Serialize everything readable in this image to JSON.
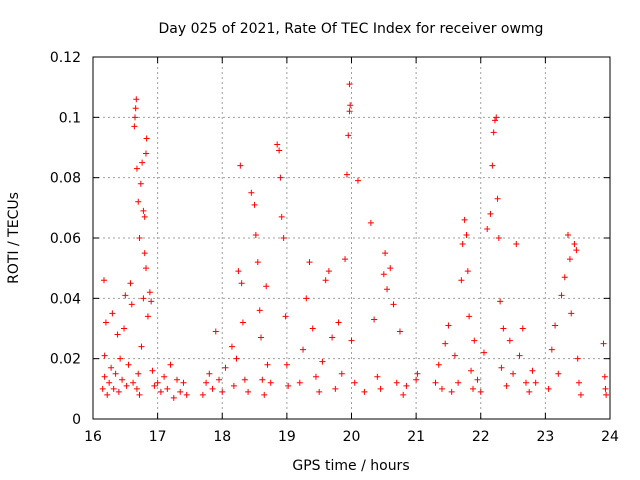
{
  "chart_data": {
    "type": "scatter",
    "title": "Day 025 of 2021, Rate Of TEC Index for receiver owmg",
    "xlabel": "GPS time / hours",
    "ylabel": "ROTI / TECUs",
    "xlim": [
      16,
      24
    ],
    "ylim": [
      0,
      0.12
    ],
    "x_ticks": [
      16,
      17,
      18,
      19,
      20,
      21,
      22,
      23,
      24
    ],
    "x_tick_labels": [
      "16",
      "17",
      "18",
      "19",
      "20",
      "21",
      "22",
      "23",
      "24"
    ],
    "y_ticks": [
      0,
      0.02,
      0.04,
      0.06,
      0.08,
      0.1,
      0.12
    ],
    "y_tick_labels": [
      "0",
      "0.02",
      "0.04",
      "0.06",
      "0.08",
      "0.1",
      "0.12"
    ],
    "grid": true,
    "marker": "plus",
    "series": [
      {
        "name": "ROTI",
        "color": "#ff0000",
        "points": [
          [
            16.15,
            0.01
          ],
          [
            16.18,
            0.014
          ],
          [
            16.18,
            0.021
          ],
          [
            16.17,
            0.046
          ],
          [
            16.2,
            0.032
          ],
          [
            16.22,
            0.008
          ],
          [
            16.25,
            0.012
          ],
          [
            16.28,
            0.017
          ],
          [
            16.3,
            0.035
          ],
          [
            16.32,
            0.01
          ],
          [
            16.35,
            0.015
          ],
          [
            16.38,
            0.028
          ],
          [
            16.4,
            0.009
          ],
          [
            16.42,
            0.02
          ],
          [
            16.45,
            0.013
          ],
          [
            16.48,
            0.03
          ],
          [
            16.5,
            0.041
          ],
          [
            16.52,
            0.011
          ],
          [
            16.55,
            0.018
          ],
          [
            16.58,
            0.045
          ],
          [
            16.6,
            0.038
          ],
          [
            16.62,
            0.012
          ],
          [
            16.64,
            0.097
          ],
          [
            16.65,
            0.1
          ],
          [
            16.66,
            0.103
          ],
          [
            16.67,
            0.106
          ],
          [
            16.68,
            0.083
          ],
          [
            16.7,
            0.072
          ],
          [
            16.72,
            0.06
          ],
          [
            16.74,
            0.078
          ],
          [
            16.76,
            0.085
          ],
          [
            16.78,
            0.069
          ],
          [
            16.8,
            0.067
          ],
          [
            16.82,
            0.088
          ],
          [
            16.83,
            0.093
          ],
          [
            16.8,
            0.055
          ],
          [
            16.82,
            0.05
          ],
          [
            16.78,
            0.04
          ],
          [
            16.75,
            0.024
          ],
          [
            16.7,
            0.015
          ],
          [
            16.68,
            0.01
          ],
          [
            16.72,
            0.008
          ],
          [
            16.85,
            0.034
          ],
          [
            16.88,
            0.042
          ],
          [
            16.9,
            0.039
          ],
          [
            16.92,
            0.016
          ],
          [
            16.95,
            0.011
          ],
          [
            17.0,
            0.012
          ],
          [
            17.05,
            0.009
          ],
          [
            17.1,
            0.014
          ],
          [
            17.15,
            0.01
          ],
          [
            17.2,
            0.018
          ],
          [
            17.25,
            0.007
          ],
          [
            17.3,
            0.013
          ],
          [
            17.35,
            0.009
          ],
          [
            17.4,
            0.012
          ],
          [
            17.45,
            0.008
          ],
          [
            17.7,
            0.008
          ],
          [
            17.75,
            0.012
          ],
          [
            17.8,
            0.015
          ],
          [
            17.85,
            0.01
          ],
          [
            17.9,
            0.029
          ],
          [
            17.95,
            0.013
          ],
          [
            18.0,
            0.009
          ],
          [
            18.05,
            0.017
          ],
          [
            18.15,
            0.024
          ],
          [
            18.18,
            0.011
          ],
          [
            18.22,
            0.02
          ],
          [
            18.25,
            0.049
          ],
          [
            18.28,
            0.084
          ],
          [
            18.3,
            0.045
          ],
          [
            18.32,
            0.032
          ],
          [
            18.35,
            0.013
          ],
          [
            18.4,
            0.009
          ],
          [
            18.45,
            0.075
          ],
          [
            18.5,
            0.071
          ],
          [
            18.52,
            0.061
          ],
          [
            18.55,
            0.052
          ],
          [
            18.58,
            0.036
          ],
          [
            18.6,
            0.027
          ],
          [
            18.62,
            0.013
          ],
          [
            18.65,
            0.008
          ],
          [
            18.68,
            0.044
          ],
          [
            18.7,
            0.018
          ],
          [
            18.75,
            0.012
          ],
          [
            18.85,
            0.091
          ],
          [
            18.88,
            0.089
          ],
          [
            18.9,
            0.08
          ],
          [
            18.92,
            0.067
          ],
          [
            18.95,
            0.06
          ],
          [
            18.98,
            0.034
          ],
          [
            19.0,
            0.018
          ],
          [
            19.02,
            0.011
          ],
          [
            19.2,
            0.012
          ],
          [
            19.25,
            0.023
          ],
          [
            19.3,
            0.04
          ],
          [
            19.35,
            0.052
          ],
          [
            19.4,
            0.03
          ],
          [
            19.45,
            0.014
          ],
          [
            19.5,
            0.009
          ],
          [
            19.55,
            0.019
          ],
          [
            19.6,
            0.046
          ],
          [
            19.65,
            0.049
          ],
          [
            19.7,
            0.027
          ],
          [
            19.75,
            0.01
          ],
          [
            19.8,
            0.032
          ],
          [
            19.85,
            0.015
          ],
          [
            19.9,
            0.053
          ],
          [
            19.93,
            0.081
          ],
          [
            19.95,
            0.094
          ],
          [
            19.97,
            0.102
          ],
          [
            19.98,
            0.104
          ],
          [
            19.97,
            0.111
          ],
          [
            20.0,
            0.026
          ],
          [
            20.05,
            0.012
          ],
          [
            20.1,
            0.079
          ],
          [
            20.2,
            0.009
          ],
          [
            20.3,
            0.065
          ],
          [
            20.35,
            0.033
          ],
          [
            20.4,
            0.014
          ],
          [
            20.45,
            0.01
          ],
          [
            20.5,
            0.048
          ],
          [
            20.52,
            0.055
          ],
          [
            20.55,
            0.043
          ],
          [
            20.6,
            0.05
          ],
          [
            20.65,
            0.038
          ],
          [
            20.7,
            0.012
          ],
          [
            20.75,
            0.029
          ],
          [
            20.8,
            0.008
          ],
          [
            20.85,
            0.011
          ],
          [
            21.0,
            0.013
          ],
          [
            21.02,
            0.015
          ],
          [
            21.3,
            0.012
          ],
          [
            21.35,
            0.018
          ],
          [
            21.4,
            0.01
          ],
          [
            21.45,
            0.025
          ],
          [
            21.5,
            0.031
          ],
          [
            21.55,
            0.009
          ],
          [
            21.6,
            0.021
          ],
          [
            21.65,
            0.012
          ],
          [
            21.7,
            0.046
          ],
          [
            21.72,
            0.058
          ],
          [
            21.75,
            0.066
          ],
          [
            21.78,
            0.061
          ],
          [
            21.8,
            0.049
          ],
          [
            21.82,
            0.034
          ],
          [
            21.85,
            0.016
          ],
          [
            21.88,
            0.01
          ],
          [
            21.9,
            0.026
          ],
          [
            21.95,
            0.013
          ],
          [
            22.0,
            0.009
          ],
          [
            22.05,
            0.022
          ],
          [
            22.1,
            0.063
          ],
          [
            22.15,
            0.068
          ],
          [
            22.18,
            0.084
          ],
          [
            22.2,
            0.095
          ],
          [
            22.22,
            0.099
          ],
          [
            22.24,
            0.1
          ],
          [
            22.26,
            0.073
          ],
          [
            22.28,
            0.06
          ],
          [
            22.3,
            0.039
          ],
          [
            22.32,
            0.017
          ],
          [
            22.35,
            0.03
          ],
          [
            22.4,
            0.011
          ],
          [
            22.45,
            0.026
          ],
          [
            22.5,
            0.015
          ],
          [
            22.55,
            0.058
          ],
          [
            22.6,
            0.021
          ],
          [
            22.65,
            0.03
          ],
          [
            22.7,
            0.012
          ],
          [
            22.75,
            0.009
          ],
          [
            22.8,
            0.016
          ],
          [
            22.85,
            0.012
          ],
          [
            23.05,
            0.01
          ],
          [
            23.1,
            0.023
          ],
          [
            23.15,
            0.031
          ],
          [
            23.2,
            0.015
          ],
          [
            23.25,
            0.041
          ],
          [
            23.3,
            0.047
          ],
          [
            23.35,
            0.061
          ],
          [
            23.38,
            0.053
          ],
          [
            23.4,
            0.035
          ],
          [
            23.45,
            0.058
          ],
          [
            23.48,
            0.056
          ],
          [
            23.5,
            0.02
          ],
          [
            23.52,
            0.012
          ],
          [
            23.55,
            0.008
          ],
          [
            23.9,
            0.025
          ],
          [
            23.92,
            0.014
          ],
          [
            23.93,
            0.01
          ],
          [
            23.94,
            0.008
          ]
        ]
      }
    ]
  }
}
